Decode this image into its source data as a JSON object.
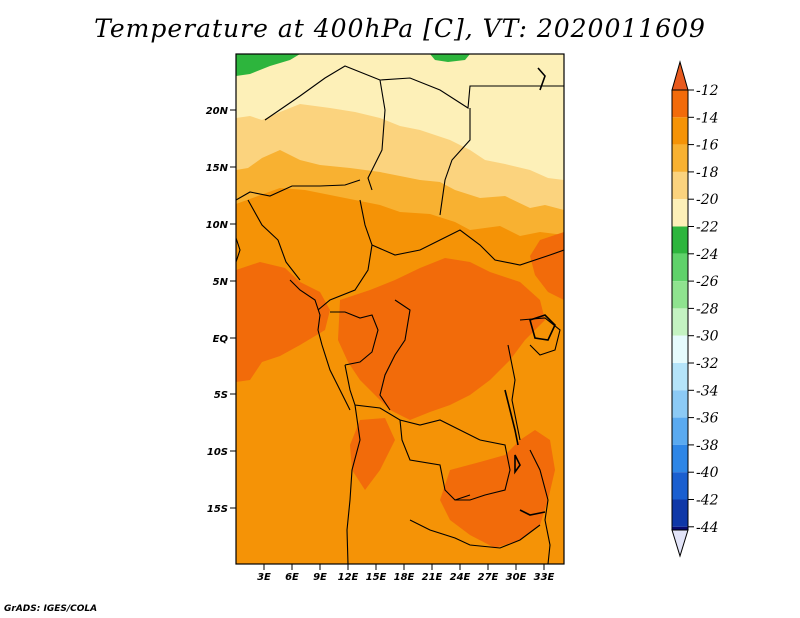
{
  "title": "Temperature at 400hPa [C], VT: 2020011609",
  "credit": "GrADS: IGES/COLA",
  "map": {
    "lat_labels": [
      "20N",
      "15N",
      "10N",
      "5N",
      "EQ",
      "5S",
      "10S",
      "15S"
    ],
    "lon_labels": [
      "3E",
      "6E",
      "9E",
      "12E",
      "15E",
      "18E",
      "21E",
      "24E",
      "27E",
      "30E",
      "33E"
    ]
  },
  "colorbar": {
    "labels": [
      "-12",
      "-14",
      "-16",
      "-18",
      "-20",
      "-22",
      "-24",
      "-26",
      "-28",
      "-30",
      "-32",
      "-34",
      "-36",
      "-38",
      "-40",
      "-42",
      "-44"
    ],
    "colors": {
      "top_triangle": "#e85a1e",
      "c1": "#f26b0a",
      "c2": "#f59306",
      "c3": "#f8b131",
      "c4": "#fbd37e",
      "c5": "#fdf0b8",
      "c6": "#2db53d",
      "c7": "#5fd26a",
      "c8": "#8fe38f",
      "c9": "#c4f3c2",
      "c10": "#e6fbfd",
      "c11": "#b5e4f9",
      "c12": "#8ccaf5",
      "c13": "#5aaaf0",
      "c14": "#2e86e6",
      "c15": "#1a5fd0",
      "c16": "#0f38a8",
      "c17": "#090b70",
      "bottom_triangle": "#e2e4f8"
    }
  },
  "field_colors": {
    "band_m12": "#f26b0a",
    "band_m14": "#f59306",
    "band_m16": "#f8b131",
    "band_m18": "#fbd37e",
    "band_m20": "#fdf0b8",
    "band_m22": "#2db53d"
  }
}
